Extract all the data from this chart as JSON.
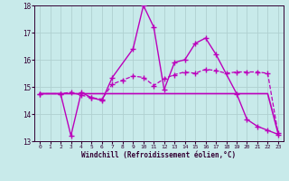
{
  "background_color": "#c8eaea",
  "grid_color": "#b0d0d0",
  "line_color": "#bb00bb",
  "xlabel": "Windchill (Refroidissement éolien,°C)",
  "xlim": [
    -0.5,
    23.5
  ],
  "ylim": [
    13,
    18
  ],
  "yticks": [
    13,
    14,
    15,
    16,
    17,
    18
  ],
  "xticks": [
    0,
    1,
    2,
    3,
    4,
    5,
    6,
    7,
    8,
    9,
    10,
    11,
    12,
    13,
    14,
    15,
    16,
    17,
    18,
    19,
    20,
    21,
    22,
    23
  ],
  "line1_x": [
    0,
    1,
    2,
    3,
    4,
    5,
    6,
    7,
    8,
    9,
    10,
    11,
    12,
    13,
    14,
    15,
    16,
    17,
    18,
    19,
    20,
    21,
    22,
    23
  ],
  "line1_y": [
    14.75,
    14.75,
    14.75,
    14.75,
    14.75,
    14.75,
    14.75,
    14.75,
    14.75,
    14.75,
    14.75,
    14.75,
    14.75,
    14.75,
    14.75,
    14.75,
    14.75,
    14.75,
    14.75,
    14.75,
    14.75,
    14.75,
    14.75,
    13.3
  ],
  "line2_x": [
    0,
    2,
    3,
    4,
    5,
    6,
    7,
    9,
    10,
    11,
    12,
    13,
    14,
    15,
    16,
    17,
    19,
    20,
    21,
    22,
    23
  ],
  "line2_y": [
    14.75,
    14.75,
    13.2,
    14.8,
    14.6,
    14.5,
    15.35,
    16.4,
    18.0,
    17.2,
    14.9,
    15.9,
    16.0,
    16.6,
    16.8,
    16.2,
    14.75,
    13.8,
    13.55,
    13.4,
    13.25
  ],
  "line3_x": [
    0,
    2,
    3,
    4,
    5,
    6,
    7,
    8,
    9,
    10,
    11,
    12,
    13,
    14,
    15,
    16,
    17,
    18,
    19,
    20,
    21,
    22,
    23
  ],
  "line3_y": [
    14.75,
    14.75,
    14.8,
    14.7,
    14.6,
    14.55,
    15.1,
    15.25,
    15.4,
    15.35,
    15.05,
    15.3,
    15.45,
    15.55,
    15.5,
    15.65,
    15.6,
    15.5,
    15.55,
    15.55,
    15.55,
    15.5,
    13.3
  ]
}
